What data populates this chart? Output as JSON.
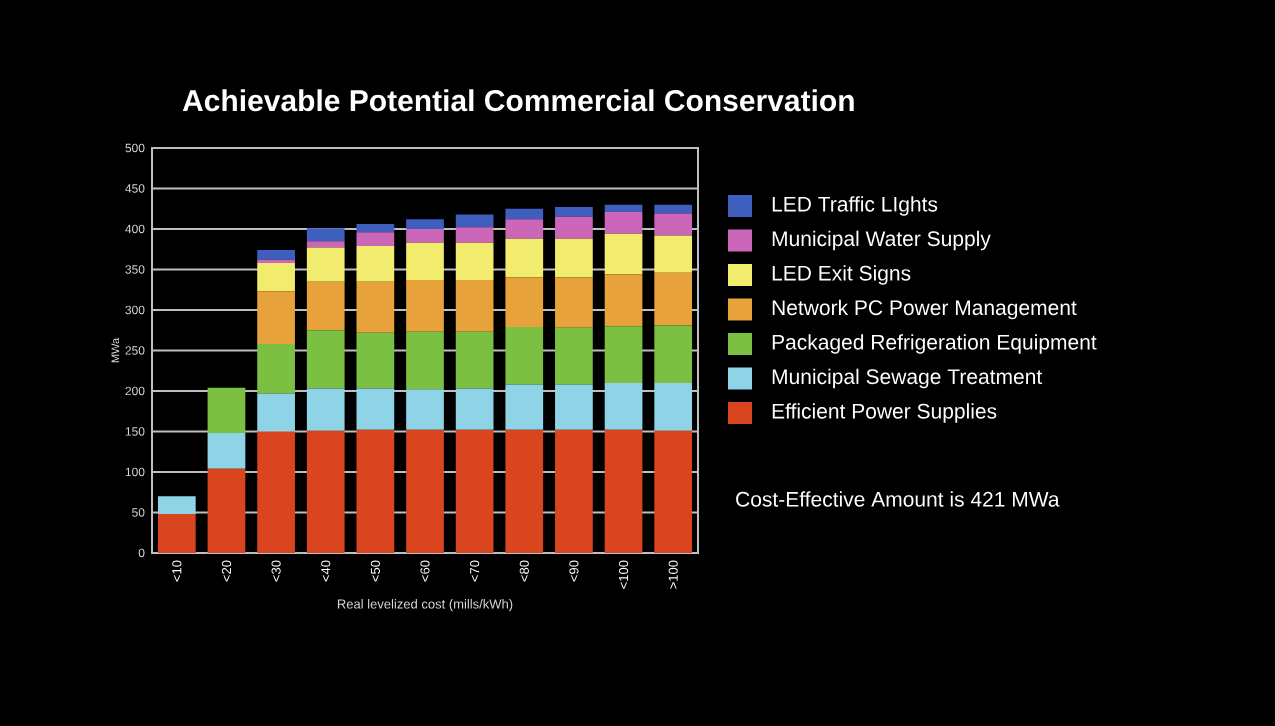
{
  "chart_data": {
    "type": "bar",
    "stacked": true,
    "title": "Achievable Potential Commercial Conservation",
    "xlabel": "Real levelized cost (mills/kWh)",
    "ylabel": "MWa",
    "categories": [
      "<10",
      "<20",
      "<30",
      "<40",
      "<50",
      "<60",
      "<70",
      "<80",
      "<90",
      "<100",
      ">100"
    ],
    "series": [
      {
        "name": "Efficient Power Supplies",
        "color": "#d9451f",
        "values": [
          48,
          104,
          150,
          151,
          152,
          152,
          152,
          152,
          152,
          152,
          151
        ]
      },
      {
        "name": "Municipal Sewage Treatment",
        "color": "#8fd3e6",
        "values": [
          22,
          44,
          47,
          52,
          51,
          50,
          51,
          56,
          56,
          58,
          59
        ]
      },
      {
        "name": "Packaged Refrigeration Equipment",
        "color": "#7cc043",
        "values": [
          null,
          56,
          61,
          72,
          69,
          71,
          70,
          71,
          70,
          70,
          71
        ]
      },
      {
        "name": "Network PC Power Management",
        "color": "#e8a23c",
        "values": [
          null,
          null,
          65,
          60,
          63,
          64,
          64,
          61,
          62,
          64,
          65
        ]
      },
      {
        "name": "LED Exit Signs",
        "color": "#f2ec6e",
        "values": [
          null,
          null,
          35,
          42,
          44,
          46,
          46,
          48,
          48,
          50,
          46
        ]
      },
      {
        "name": "Municipal Water Supply",
        "color": "#cc66b8",
        "values": [
          null,
          null,
          4,
          8,
          17,
          17,
          19,
          24,
          27,
          27,
          27
        ]
      },
      {
        "name": "LED Traffic LIghts",
        "color": "#3f5fbf",
        "values": [
          null,
          null,
          12,
          16,
          10,
          12,
          16,
          13,
          12,
          9,
          11
        ]
      }
    ],
    "ylim": [
      0,
      500
    ],
    "yticks": [
      0,
      50,
      100,
      150,
      200,
      250,
      300,
      350,
      400,
      450,
      500
    ],
    "grid": "y",
    "legend": "right",
    "annotations": [
      "Cost-Effective Amount is 421 MWa"
    ]
  }
}
